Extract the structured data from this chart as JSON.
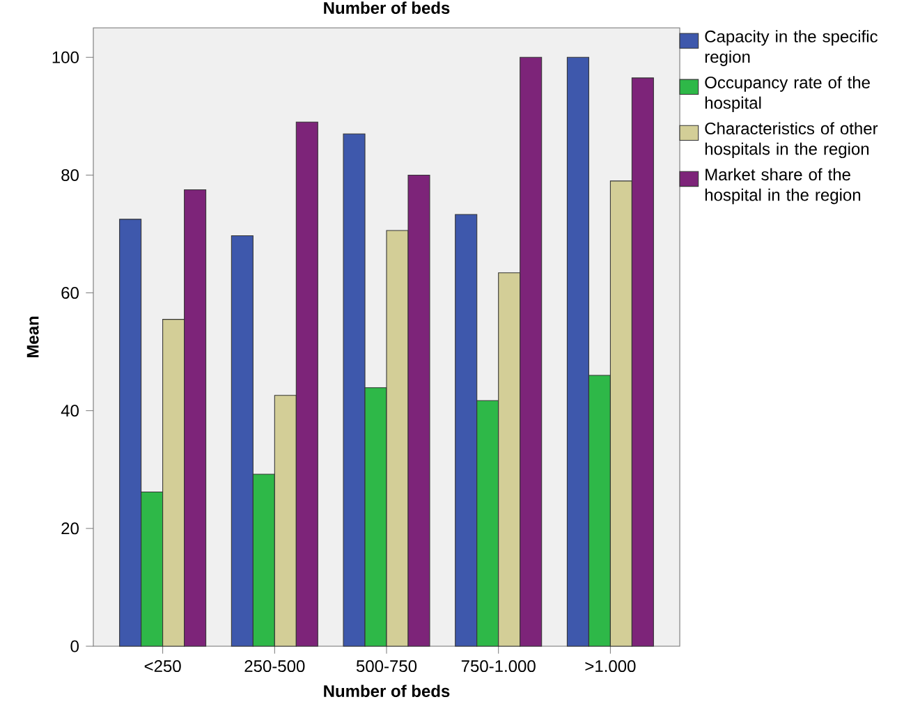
{
  "chart_data": {
    "type": "bar",
    "title": "Number of beds",
    "xlabel": "Number of beds",
    "ylabel": "Mean",
    "categories": [
      "<250",
      "250-500",
      "500-750",
      "750-1.000",
      ">1.000"
    ],
    "series": [
      {
        "name": "Capacity in the specific region",
        "color": "#3e58ac",
        "values": [
          72.5,
          69.7,
          87,
          73.3,
          100
        ]
      },
      {
        "name": "Occupancy rate of the hospital",
        "color": "#2eb848",
        "values": [
          26.2,
          29.2,
          43.9,
          41.7,
          46
        ]
      },
      {
        "name": "Characteristics of other hospitals in the region",
        "color": "#d3ce97",
        "values": [
          55.5,
          42.6,
          70.6,
          63.4,
          79
        ]
      },
      {
        "name": "Market share of the hospital in the region",
        "color": "#7d2479",
        "values": [
          77.5,
          89,
          80,
          100,
          96.5
        ]
      }
    ],
    "ylim": [
      0,
      105
    ],
    "yticks": [
      0,
      20,
      40,
      60,
      80,
      100
    ],
    "grid": false,
    "legend": "top right"
  }
}
